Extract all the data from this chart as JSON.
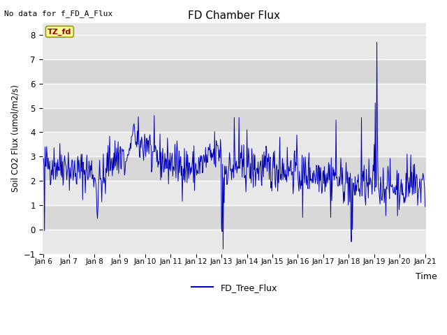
{
  "title": "FD Chamber Flux",
  "xlabel": "Time",
  "ylabel": "Soil CO2 Flux (umol/m2/s)",
  "no_data_text": "No data for f_FD_A_Flux",
  "annotation_text": "TZ_fd",
  "legend_label": "FD_Tree_Flux",
  "line_color": "#0000bb",
  "ylim": [
    -1.0,
    8.5
  ],
  "yticks": [
    -1.0,
    0.0,
    1.0,
    2.0,
    3.0,
    4.0,
    5.0,
    6.0,
    7.0,
    8.0
  ],
  "xtick_labels": [
    "Jan 6",
    "Jan 7",
    "Jan 8",
    "Jan 9",
    "Jan 10",
    "Jan 11",
    "Jan 12",
    "Jan 13",
    "Jan 14",
    "Jan 15",
    "Jan 16",
    "Jan 17",
    "Jan 18",
    "Jan 19",
    "Jan 20",
    "Jan 21"
  ],
  "plot_bg_color": "#e8e8e8",
  "grid_color": "#ffffff",
  "annotation_bg": "#ffff99",
  "annotation_border": "#999900",
  "annotation_text_color": "#990000",
  "seed": 42
}
